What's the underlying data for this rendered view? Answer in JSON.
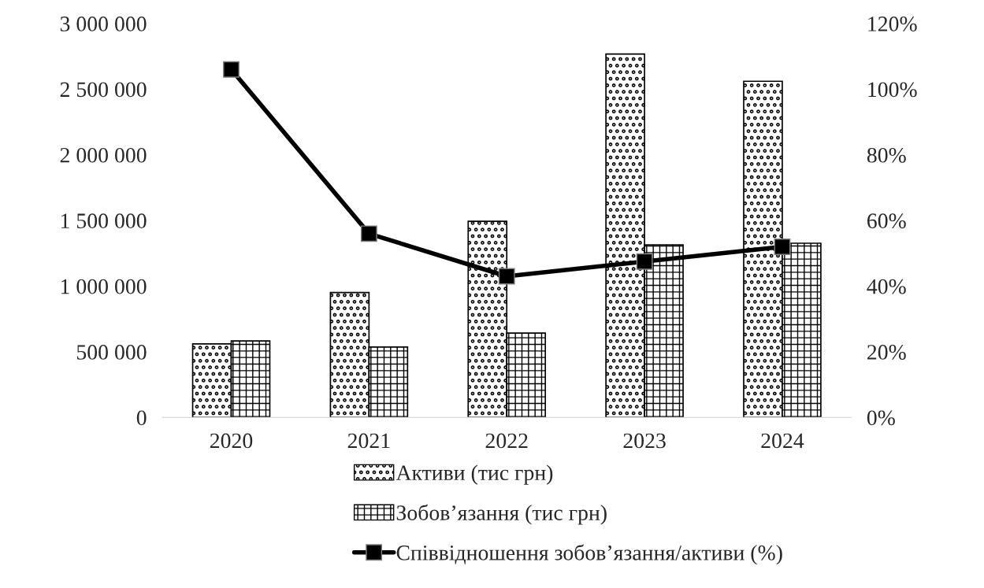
{
  "chart_data": {
    "type": "bar",
    "categories": [
      "2020",
      "2021",
      "2022",
      "2023",
      "2024"
    ],
    "series": [
      {
        "name": "Активи (тис грн)",
        "values": [
          560000,
          952000,
          1494000,
          2768000,
          2560000
        ]
      },
      {
        "name": "Зобов’язання (тис грн)",
        "values": [
          583000,
          536000,
          643000,
          1315000,
          1327000
        ]
      },
      {
        "name": "Співвідношення зобов’язання/активи (%)",
        "type": "line",
        "axis": "y2",
        "color": "#000000",
        "marker": "square",
        "values": [
          106,
          56,
          43,
          47.5,
          52
        ]
      }
    ],
    "ylim": [
      0,
      3000000
    ],
    "yticks": [
      0,
      {
        "value": 500000,
        "label": "500 000"
      },
      {
        "value": 1000000,
        "label": "1 000 000"
      },
      {
        "value": 1500000,
        "label": "1 500 000"
      },
      {
        "value": 2000000,
        "label": "2 000 000"
      },
      {
        "value": 2500000,
        "label": "2 500 000"
      },
      {
        "value": 3000000,
        "label": "3 000 000"
      }
    ],
    "y2lim": [
      0,
      120
    ],
    "y2ticks": [
      {
        "value": 0,
        "label": "0%"
      },
      {
        "value": 20,
        "label": "20%"
      },
      {
        "value": 40,
        "label": "40%"
      },
      {
        "value": 60,
        "label": "60%"
      },
      {
        "value": 80,
        "label": "80%"
      },
      {
        "value": 100,
        "label": "100%"
      },
      {
        "value": 120,
        "label": "120%"
      }
    ],
    "legend": "bottom",
    "grid": false
  }
}
